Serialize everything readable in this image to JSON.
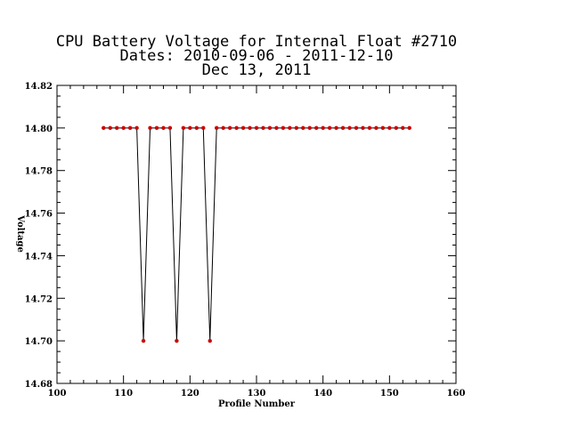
{
  "chart_data": {
    "type": "line",
    "title_lines": [
      "CPU Battery Voltage for Internal Float #2710",
      "Dates:  2010-09-06 -  2011-12-10",
      "Dec 13, 2011"
    ],
    "xlabel": "Profile Number",
    "ylabel": "Voltage",
    "xlim": [
      100,
      160
    ],
    "ylim": [
      14.68,
      14.82
    ],
    "x_ticks": [
      "100",
      "110",
      "120",
      "130",
      "140",
      "150",
      "160"
    ],
    "y_ticks": [
      "14.68",
      "14.70",
      "14.72",
      "14.74",
      "14.76",
      "14.78",
      "14.80",
      "14.82"
    ],
    "grid": false,
    "line_color": "#000000",
    "marker_color": "#cc0000",
    "series": [
      {
        "x": [
          107,
          108,
          109,
          110,
          111,
          112,
          113,
          114,
          115,
          116,
          117,
          118,
          119,
          120,
          121,
          122,
          123,
          124,
          125,
          126,
          127,
          128,
          129,
          130,
          131,
          132,
          133,
          134,
          135,
          136,
          137,
          138,
          139,
          140,
          141,
          142,
          143,
          144,
          145,
          146,
          147,
          148,
          149,
          150,
          151,
          152,
          153
        ],
        "y": [
          14.8,
          14.8,
          14.8,
          14.8,
          14.8,
          14.8,
          14.7,
          14.8,
          14.8,
          14.8,
          14.8,
          14.7,
          14.8,
          14.8,
          14.8,
          14.8,
          14.7,
          14.8,
          14.8,
          14.8,
          14.8,
          14.8,
          14.8,
          14.8,
          14.8,
          14.8,
          14.8,
          14.8,
          14.8,
          14.8,
          14.8,
          14.8,
          14.8,
          14.8,
          14.8,
          14.8,
          14.8,
          14.8,
          14.8,
          14.8,
          14.8,
          14.8,
          14.8,
          14.8,
          14.8,
          14.8,
          14.8
        ]
      }
    ]
  }
}
